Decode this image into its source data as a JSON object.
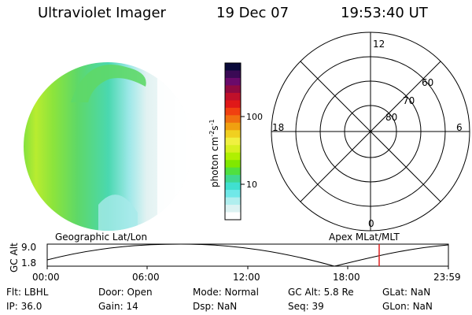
{
  "header": {
    "instrument": "Ultraviolet Imager",
    "date": "19 Dec 07",
    "time": "19:53:40 UT"
  },
  "colorbar": {
    "unit_label": "photon cm",
    "unit_sup1": "-2",
    "unit_mid": "s",
    "unit_sup2": "-1",
    "ticks": [
      "100",
      "10"
    ],
    "colors": [
      "#0a0a3a",
      "#3a0a55",
      "#6a0a6a",
      "#900a40",
      "#c0102a",
      "#e01818",
      "#f04010",
      "#f07010",
      "#f0a010",
      "#f0d020",
      "#f0f040",
      "#d8f020",
      "#b0f000",
      "#80e800",
      "#50e040",
      "#40d890",
      "#40e0d0",
      "#70e8e8",
      "#b0eeee",
      "#dcf2f2",
      "#ffffff"
    ]
  },
  "polar": {
    "labels": {
      "top": "12",
      "bottom": "0",
      "left": "18",
      "right": "6"
    },
    "rings": [
      "60",
      "70",
      "80"
    ]
  },
  "timeline": {
    "left_title": "Geographic Lat/Lon",
    "right_title": "Apex MLat/MLT",
    "ylabel": "GC Alt",
    "ytick_high": "9.0",
    "ytick_low": "1.8",
    "xticks": [
      "00:00",
      "06:00",
      "12:00",
      "18:00",
      "23:59"
    ],
    "marker_color": "#e02020"
  },
  "info": {
    "flt": "Flt: LBHL",
    "ip": "IP: 36.0",
    "door": "Door: Open",
    "gain": "Gain: 14",
    "mode": "Mode: Normal",
    "dsp": "Dsp:    NaN",
    "gcalt": "GC Alt: 5.8 Re",
    "seq": "Seq: 39",
    "glat": "GLat:     NaN",
    "glon": "GLon:     NaN"
  }
}
